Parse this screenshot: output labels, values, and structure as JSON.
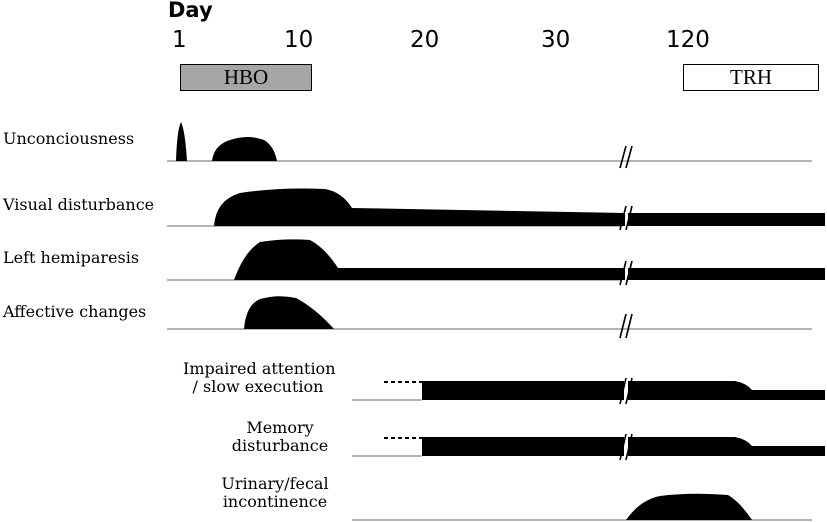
{
  "diagram": {
    "axis_title": "Day",
    "ticks": [
      "1",
      "10",
      "20",
      "30",
      "120"
    ],
    "treatments": [
      {
        "label": "HBO",
        "color": "#a6a6a6"
      },
      {
        "label": "TRH",
        "color": "#ffffff"
      }
    ],
    "symptoms": [
      {
        "label": "Unconciousness"
      },
      {
        "label": "Visual disturbance"
      },
      {
        "label": "Left hemiparesis"
      },
      {
        "label": "Affective changes"
      },
      {
        "label_line1": "Impaired attention",
        "label_line2": "/ slow execution"
      },
      {
        "label_line1": "Memory",
        "label_line2": "disturbance"
      },
      {
        "label_line1": "Urinary/fecal",
        "label_line2": "incontinence"
      }
    ]
  }
}
